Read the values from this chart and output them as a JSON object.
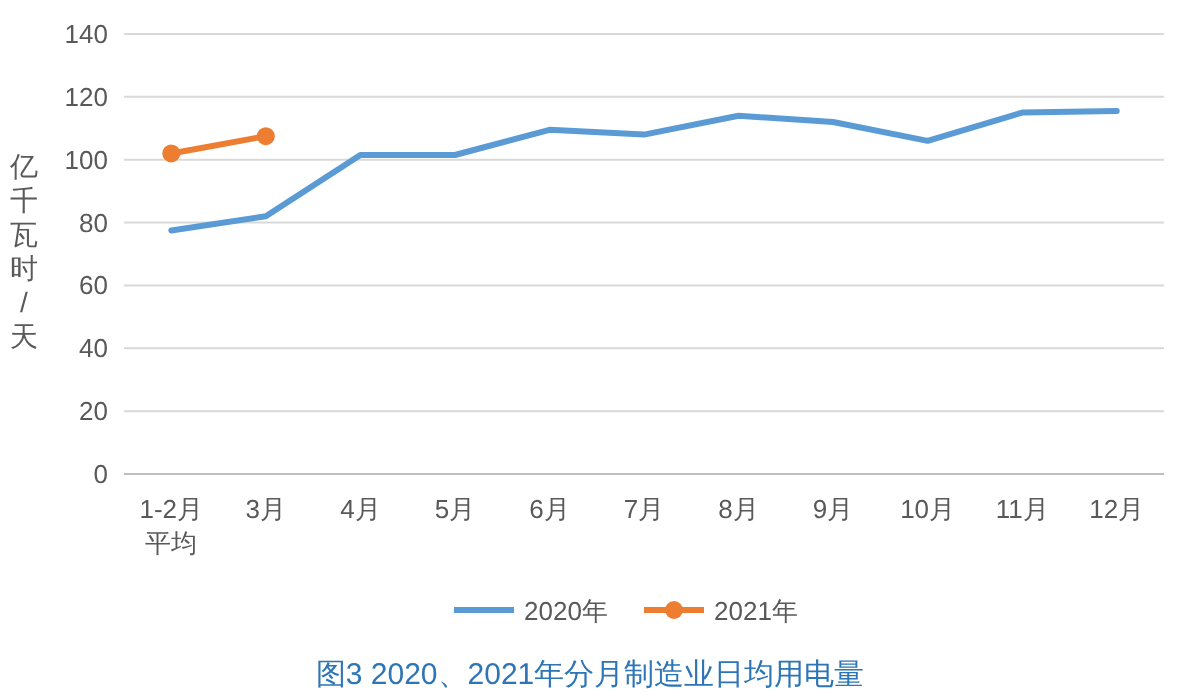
{
  "chart_data": {
    "type": "line",
    "title": "图3  2020、2021年分月制造业日均用电量",
    "ylabel": "亿千瓦时/天",
    "categories": [
      "1-2月平均",
      "3月",
      "4月",
      "5月",
      "6月",
      "7月",
      "8月",
      "9月",
      "10月",
      "11月",
      "12月"
    ],
    "series": [
      {
        "name": "2020年",
        "color": "#5b9bd5",
        "marker": "none",
        "values": [
          77.5,
          82,
          101.5,
          101.5,
          109.5,
          108,
          114,
          112,
          106,
          115,
          115.5
        ]
      },
      {
        "name": "2021年",
        "color": "#ed7d31",
        "marker": "circle",
        "values": [
          102,
          107.5,
          null,
          null,
          null,
          null,
          null,
          null,
          null,
          null,
          null
        ]
      }
    ],
    "ylim": [
      0,
      140
    ],
    "yticks": [
      0,
      20,
      40,
      60,
      80,
      100,
      120,
      140
    ],
    "grid": "y",
    "legend": "bottom"
  }
}
